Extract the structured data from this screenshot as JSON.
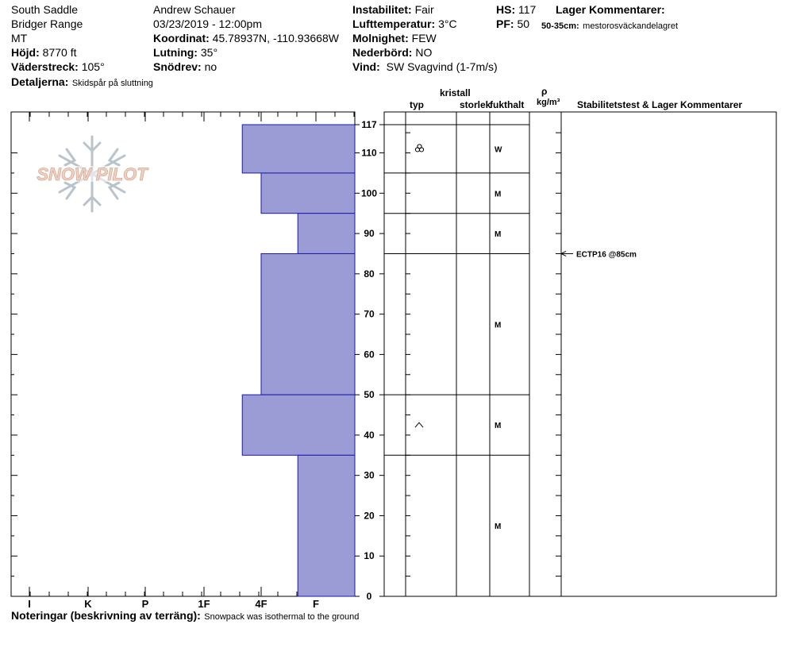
{
  "header": {
    "location": "South Saddle",
    "range": "Bridger Range",
    "state": "MT",
    "elevation_label": "Höjd:",
    "elevation_value": "8770 ft",
    "aspect_label": "Väderstreck:",
    "aspect_value": "105°",
    "details_label": "Detaljerna:",
    "details_value": "Skidspår på sluttning",
    "observer": "Andrew Schauer",
    "datetime": "03/23/2019 - 12:00pm",
    "coord_label": "Koordinat:",
    "coord_value": "45.78937N, -110.93668W",
    "slope_label": "Lutning:",
    "slope_value": "35°",
    "drift_label": "Snödrev:",
    "drift_value": "no",
    "instability_label": "Instabilitet:",
    "instability_value": "Fair",
    "airtemp_label": "Lufttemperatur:",
    "airtemp_value": "3°C",
    "cloud_label": "Molnighet:",
    "cloud_value": "FEW",
    "precip_label": "Nederbörd:",
    "precip_value": "NO",
    "wind_label": "Vind:",
    "wind_value": "SW Svagvind (1-7m/s)",
    "hs_label": "HS:",
    "hs_value": "117",
    "pf_label": "PF:",
    "pf_value": "50",
    "layer_comments_label": "Lager Kommentarer:",
    "layer_comment_range": "50-35cm:",
    "layer_comment_text": "mestorosväckandelagret"
  },
  "table_headers": {
    "crystal": "kristall",
    "type": "typ",
    "size": "storlek",
    "moisture": "fukthalt",
    "rho": "ρ",
    "density_unit": "kg/m³",
    "stability": "Stabilitetstest & Lager Kommentarer"
  },
  "logo_text": "SNOW PILOT",
  "notes": {
    "label": "Noteringar (beskrivning av terräng):",
    "text": "Snowpack was isothermal to the ground"
  },
  "test_result": "ECTP16 @85cm",
  "colors": {
    "bar_fill": "#9b9bd6",
    "bar_stroke": "#1a1aaa",
    "logo": "#e8c9b8",
    "logo_flake": "#b9c3cc"
  },
  "chart_data": {
    "type": "bar",
    "orientation": "horizontal-step",
    "xlabel": "",
    "ylabel": "",
    "hardness_ticks": [
      "I",
      "K",
      "P",
      "1F",
      "4F",
      "F"
    ],
    "y_ticks": [
      0,
      10,
      20,
      30,
      40,
      50,
      60,
      70,
      80,
      90,
      100,
      110,
      117
    ],
    "ylim": [
      0,
      117
    ],
    "layers": [
      {
        "top": 117,
        "bottom": 105,
        "hardness": "4F-",
        "hardness_value": 3.67,
        "grain": "melt-forms-clusters",
        "moisture": "W"
      },
      {
        "top": 105,
        "bottom": 95,
        "hardness": "4F",
        "hardness_value": 4.0,
        "grain": "",
        "moisture": "M"
      },
      {
        "top": 95,
        "bottom": 85,
        "hardness": "1F",
        "hardness_value": 4.67,
        "grain": "",
        "moisture": "M"
      },
      {
        "top": 85,
        "bottom": 50,
        "hardness": "4F",
        "hardness_value": 4.0,
        "grain": "",
        "moisture": "M"
      },
      {
        "top": 50,
        "bottom": 35,
        "hardness": "4F-",
        "hardness_value": 3.67,
        "grain": "depth-hoar",
        "moisture": "M"
      },
      {
        "top": 35,
        "bottom": 0,
        "hardness": "1F",
        "hardness_value": 4.67,
        "grain": "",
        "moisture": "M"
      }
    ],
    "tests": [
      {
        "label": "ECTP16 @85cm",
        "depth": 85
      }
    ]
  }
}
